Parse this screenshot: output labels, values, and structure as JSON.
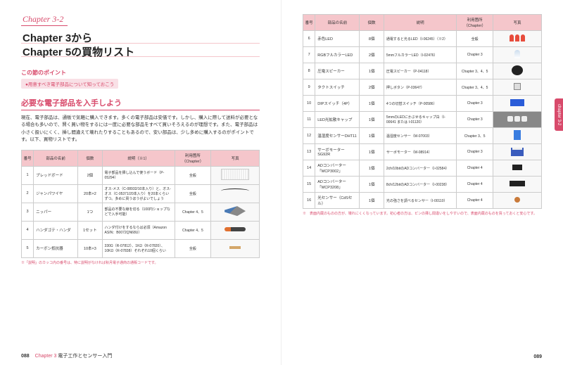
{
  "chapterLabel": "Chapter 3-2",
  "mainTitle1": "Chapter 3から",
  "mainTitle2": "Chapter 5の買物リスト",
  "pointTitle": "この節のポイント",
  "pointItem": "●用意すべき電子部品について知っておこう",
  "sectionTitle": "必要な電子部品を入手しよう",
  "bodyText": "現在、電子部品は、通販で気軽に購入できます。多くの電子部品は安価です。しかし、購入に際して送料が必要となる場合も多いので、賢く買い物をするには一度に必要な部品をすべて買いそろえるのが理想です。また、電子部品は小さく扱いにくく、挿し間違えて壊れたりすることもあるので、安い部品は、少し多めに購入するのがポイントです。以下、買物リストです。",
  "headers": [
    "番号",
    "部品の名前",
    "個数",
    "説明（※1）",
    "利用箇所（Chapter）",
    "写真"
  ],
  "headersR": [
    "番号",
    "部品の名前",
    "個数",
    "説明",
    "利用箇所（Chapter）",
    "写真"
  ],
  "leftRows": [
    {
      "n": "1",
      "name": "ブレッドボード",
      "qty": "2個",
      "desc": "電子部品を挿し込んで使うボード（P-05294）",
      "chap": "全般",
      "icon": "bread"
    },
    {
      "n": "2",
      "name": "ジャンパワイヤ",
      "qty": "20本×2",
      "desc": "オス-メス（C-08932/10本入り）と、オス-オス（C-05371/20本入り）を20本くらいずつ。多めに買うほうがよいでしょう",
      "chap": "全般",
      "icon": "wire"
    },
    {
      "n": "3",
      "name": "ニッパー",
      "qty": "1つ",
      "desc": "部品の不要な線を切る（100円ショップなどで入手可能）",
      "chap": "Chapter 4、5",
      "icon": "nipper"
    },
    {
      "n": "4",
      "name": "ハンダゴテ・ハンダ",
      "qty": "1セット",
      "desc": "ハンダ付けをするならば必須（Amazon ASIN：B0072QN68U）",
      "chap": "Chapter 4、5",
      "icon": "solder"
    },
    {
      "n": "5",
      "name": "カーボン抵抗器",
      "qty": "10本×3",
      "desc": "330Ω（R-07812）、1KΩ（R-07820）、10KΩ（R-07838）それぞれ10個くらい",
      "chap": "全般",
      "icon": "resistor"
    }
  ],
  "rightRows": [
    {
      "n": "6",
      "name": "赤色LED",
      "qty": "8個",
      "desc": "通電すると光るLED（I-06245）（※2）",
      "chap": "全般",
      "icon": "led-red",
      "multi": 3
    },
    {
      "n": "7",
      "name": "RGBフルカラーLED",
      "qty": "2個",
      "desc": "5mmフルカラーLED（I-02476）",
      "chap": "Chapter 3",
      "icon": "led-rgb"
    },
    {
      "n": "8",
      "name": "圧電スピーカー",
      "qty": "1個",
      "desc": "圧電スピーカー（P-04118）",
      "chap": "Chapter 3、4、5",
      "icon": "speaker"
    },
    {
      "n": "9",
      "name": "タクトスイッチ",
      "qty": "2個",
      "desc": "押しボタン（P-03647）",
      "chap": "Chapter 3、4、5",
      "icon": "switch-t"
    },
    {
      "n": "10",
      "name": "DIPスイッチ（4P）",
      "qty": "1個",
      "desc": "4つの切替スイッチ（P-00586）",
      "chap": "Chapter 3",
      "icon": "dip"
    },
    {
      "n": "11",
      "name": "LED光拡散キャップ",
      "qty": "1個",
      "desc": "5mmのLEDにかぶせるキャップ白（I-00641 または I-01120）",
      "chap": "Chapter 3",
      "icon": "led-cap",
      "multi": 3,
      "bg": "#888"
    },
    {
      "n": "12",
      "name": "温湿度センサーDHT11",
      "qty": "1個",
      "desc": "温湿度センサー（M-07003）",
      "chap": "Chapter 3、5",
      "icon": "dht"
    },
    {
      "n": "13",
      "name": "サーボモーターSG92R",
      "qty": "1個",
      "desc": "サーボモーター（M-08914）",
      "chap": "Chapter 3",
      "icon": "servo"
    },
    {
      "n": "14",
      "name": "ADコンバーター「MCP3002」",
      "qty": "1個",
      "desc": "2ch/10bitのADコンバーター（I-02584）",
      "chap": "Chapter 4",
      "icon": "chip8"
    },
    {
      "n": "15",
      "name": "ADコンバーター「MCP3208」",
      "qty": "1個",
      "desc": "8ch/12bitのADコンバーター（I-00238）",
      "chap": "Chapter 4",
      "icon": "chip16"
    },
    {
      "n": "16",
      "name": "光センサー（CdSセル）",
      "qty": "1個",
      "desc": "光の強さを調べるセンサー（I-00110）",
      "chap": "Chapter 4",
      "icon": "cds"
    }
  ],
  "footnoteLeft": "※「説明」のカッコ内の番号は、特に説明がなければ秋月電子通商の通販コードです。",
  "footnoteRight": "※　表面内蔵のものの方が、壊れにくくなっています。初心者の方は、ピンの挿し間違いをしやすいので、表面内蔵のものを買っておくと安心です。",
  "tabText": "chapter 3-2",
  "pageLeft": {
    "num": "088",
    "chap": "Chapter 3",
    "title": "電子工作とセンサー入門"
  },
  "pageRight": {
    "num": "089"
  }
}
